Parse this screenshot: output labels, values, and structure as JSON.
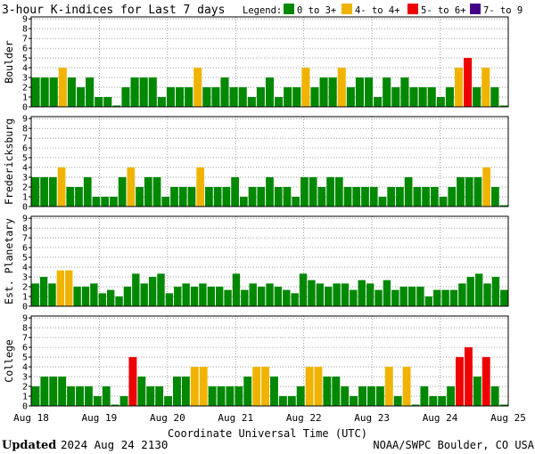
{
  "chart_data": {
    "type": "bar",
    "title": "3-hour K-indices for Last 7 days",
    "legend_label": "Legend:",
    "legend": [
      {
        "label": "0 to 3+",
        "color": "#008800"
      },
      {
        "label": "4- to 4+",
        "color": "#f0b400"
      },
      {
        "label": "5- to 6+",
        "color": "#ee0000"
      },
      {
        "label": "7- to 9",
        "color": "#440088"
      }
    ],
    "color_thresholds": {
      "yellow_min": 3.67,
      "red_min": 4.67,
      "purple_min": 6.67
    },
    "ylim": [
      0,
      9
    ],
    "yticks": [
      "0",
      "1",
      "2",
      "3",
      "4",
      "5",
      "6",
      "7",
      "8",
      "9"
    ],
    "xlabel": "Coordinate Universal Time (UTC)",
    "xticks": [
      "Aug 18",
      "Aug 19",
      "Aug 20",
      "Aug 21",
      "Aug 22",
      "Aug 23",
      "Aug 24",
      "Aug 25"
    ],
    "panels": [
      {
        "name": "Boulder",
        "values": [
          3,
          3,
          3,
          4,
          3,
          2,
          3,
          1,
          1,
          0,
          2,
          3,
          3,
          3,
          1,
          2,
          2,
          2,
          4,
          2,
          2,
          3,
          2,
          2,
          1,
          2,
          3,
          1,
          2,
          2,
          4,
          2,
          3,
          3,
          4,
          2,
          3,
          3,
          1,
          3,
          2,
          3,
          2,
          2,
          2,
          1,
          2,
          4,
          5,
          2,
          4,
          2,
          0
        ]
      },
      {
        "name": "Fredericksburg",
        "values": [
          3,
          3,
          3,
          4,
          2,
          2,
          3,
          1,
          1,
          1,
          3,
          4,
          2,
          3,
          3,
          1,
          2,
          2,
          2,
          4,
          2,
          2,
          2,
          3,
          1,
          2,
          2,
          3,
          2,
          2,
          1,
          3,
          3,
          2,
          3,
          3,
          2,
          2,
          2,
          2,
          1,
          2,
          2,
          3,
          2,
          2,
          2,
          1,
          2,
          3,
          3,
          3,
          4,
          2,
          0
        ]
      },
      {
        "name": "Est. Planetary",
        "values": [
          2.33,
          3,
          2.33,
          3.67,
          3.67,
          2,
          2,
          2.33,
          1.33,
          1.67,
          1,
          2,
          3.33,
          2.33,
          3,
          3.33,
          1.33,
          2,
          2.33,
          2,
          2.33,
          2,
          2,
          1.67,
          3.33,
          1.67,
          2.33,
          2,
          2.33,
          2,
          1.67,
          1.33,
          3.33,
          2.67,
          2.33,
          2,
          2.33,
          2.33,
          1.67,
          2.67,
          2.33,
          1.67,
          2.67,
          1.67,
          2,
          2,
          2,
          1,
          1.67,
          1.67,
          1.67,
          2.33,
          3,
          3.33,
          2.33,
          3,
          1.67
        ]
      },
      {
        "name": "College",
        "values": [
          2,
          3,
          3,
          3,
          2,
          2,
          2,
          1,
          2,
          0,
          1,
          5,
          3,
          2,
          2,
          1,
          3,
          3,
          4,
          4,
          2,
          2,
          2,
          2,
          3,
          4,
          4,
          3,
          1,
          1,
          2,
          4,
          4,
          3,
          3,
          2,
          1,
          2,
          2,
          2,
          4,
          1,
          4,
          0,
          2,
          1,
          1,
          2,
          5,
          6,
          3,
          5,
          2,
          0
        ]
      }
    ]
  },
  "footer": {
    "updated_label": "Updated",
    "updated_value": "2024 Aug 24 2130",
    "credit": "NOAA/SWPC Boulder, CO USA"
  }
}
